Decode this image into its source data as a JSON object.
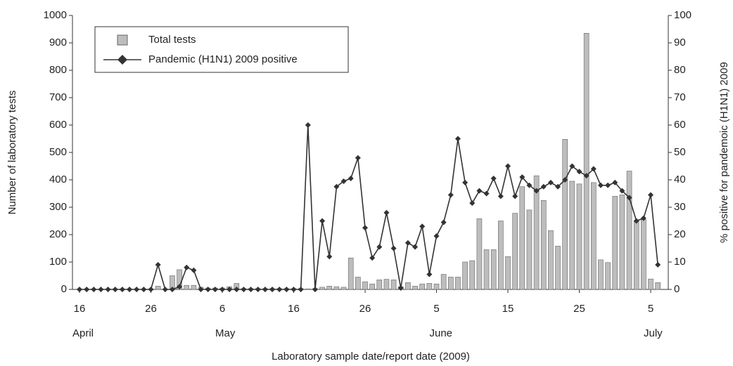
{
  "chart_data": {
    "type": "bar",
    "y_label": "Number of laboratory tests",
    "y2_label": "% positive for pandemoic (H1N1) 2009",
    "x_label": "Laboratory sample date/report date (2009)",
    "categories": [
      "16",
      null,
      null,
      null,
      null,
      null,
      null,
      null,
      null,
      null,
      "26",
      null,
      null,
      null,
      null,
      null,
      null,
      null,
      null,
      null,
      "6",
      null,
      null,
      null,
      null,
      null,
      null,
      null,
      null,
      null,
      "16",
      null,
      null,
      null,
      null,
      null,
      null,
      null,
      null,
      null,
      "26",
      null,
      null,
      null,
      null,
      null,
      null,
      null,
      null,
      null,
      "5",
      null,
      null,
      null,
      null,
      null,
      null,
      null,
      null,
      null,
      "15",
      null,
      null,
      null,
      null,
      null,
      null,
      null,
      null,
      null,
      "25",
      null,
      null,
      null,
      null,
      null,
      null,
      null,
      null,
      null,
      "5",
      null
    ],
    "months": [
      "April",
      null,
      null,
      null,
      null,
      null,
      null,
      null,
      null,
      null,
      null,
      null,
      null,
      null,
      null,
      null,
      null,
      null,
      null,
      null,
      "May",
      null,
      null,
      null,
      null,
      null,
      null,
      null,
      null,
      null,
      null,
      null,
      null,
      null,
      null,
      null,
      null,
      null,
      null,
      null,
      null,
      null,
      null,
      null,
      null,
      null,
      null,
      null,
      null,
      null,
      "June",
      null,
      null,
      null,
      null,
      null,
      null,
      null,
      null,
      null,
      null,
      null,
      null,
      null,
      null,
      null,
      null,
      null,
      null,
      null,
      null,
      null,
      null,
      null,
      null,
      null,
      null,
      null,
      null,
      null,
      "July",
      null
    ],
    "series": [
      {
        "name": "Total tests",
        "type": "bar",
        "color": "#bdbdbd",
        "values": [
          2,
          2,
          2,
          2,
          2,
          2,
          2,
          2,
          2,
          2,
          2,
          12,
          2,
          50,
          72,
          15,
          15,
          8,
          5,
          5,
          5,
          10,
          22,
          3,
          3,
          3,
          3,
          3,
          3,
          3,
          3,
          3,
          2,
          3,
          8,
          12,
          10,
          8,
          115,
          45,
          28,
          20,
          35,
          37,
          35,
          10,
          25,
          12,
          20,
          22,
          20,
          55,
          45,
          45,
          100,
          105,
          258,
          145,
          145,
          250,
          120,
          278,
          375,
          290,
          415,
          325,
          215,
          158,
          548,
          395,
          385,
          935,
          390,
          108,
          98,
          340,
          345,
          432,
          250,
          255,
          38,
          25
        ]
      },
      {
        "name": "Pandemic (H1N1) 2009 positive",
        "type": "line",
        "axis": "y2",
        "color": "#333333",
        "values": [
          0,
          0,
          0,
          0,
          0,
          0,
          0,
          0,
          0,
          0,
          0,
          9,
          0,
          0,
          1,
          8,
          7,
          0,
          0,
          0,
          0,
          0,
          0,
          0,
          0,
          0,
          0,
          0,
          0,
          0,
          0,
          0,
          60,
          0,
          25,
          12,
          37.5,
          39.5,
          40.5,
          48,
          22.5,
          11.5,
          15.5,
          28,
          15,
          0.5,
          17,
          15.5,
          23,
          5.5,
          19.5,
          24.5,
          34.5,
          55,
          39,
          31.5,
          36,
          35,
          40.5,
          34,
          45,
          34,
          41,
          38,
          36,
          37.5,
          39,
          37.5,
          40,
          45,
          43,
          41.5,
          44,
          38,
          38,
          39,
          36,
          33.5,
          25,
          26,
          34.5,
          9
        ]
      }
    ],
    "ylim": [
      0,
      1000
    ],
    "yticks": [
      0,
      100,
      200,
      300,
      400,
      500,
      600,
      700,
      800,
      900,
      1000
    ],
    "y2lim": [
      0,
      100
    ],
    "y2ticks": [
      0,
      10,
      20,
      30,
      40,
      50,
      60,
      70,
      80,
      90,
      100
    ],
    "legend": "upper left"
  }
}
